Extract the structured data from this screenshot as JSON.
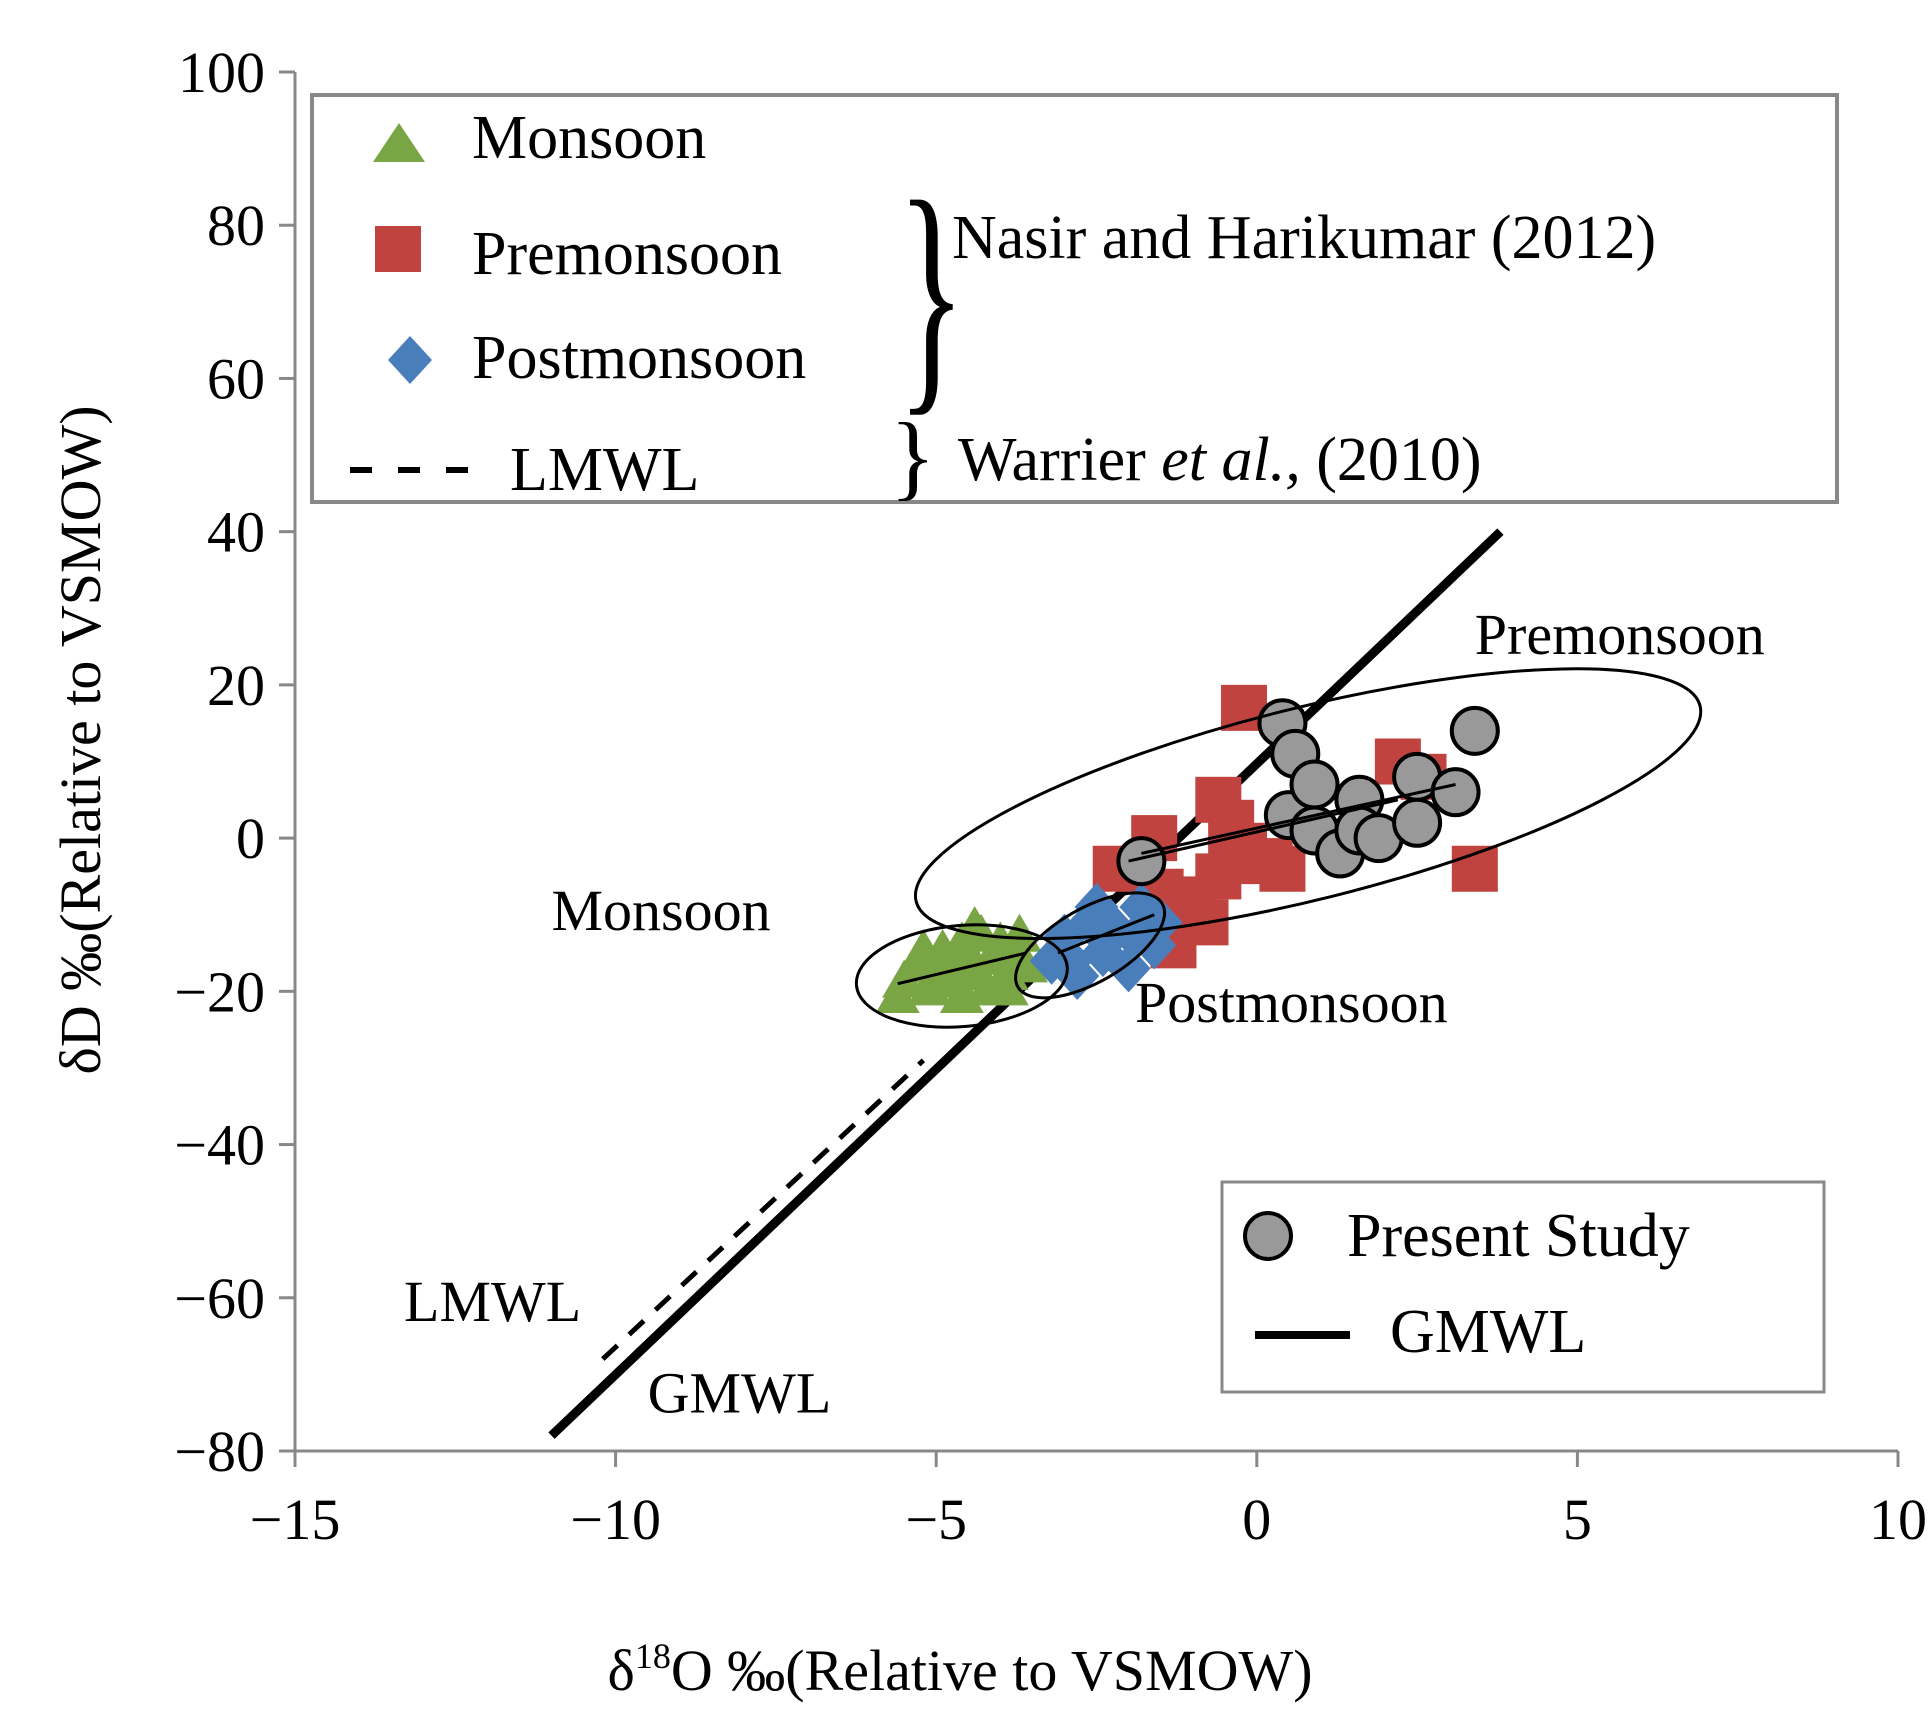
{
  "chart_data": {
    "type": "scatter",
    "xlabel": {
      "delta": "δ",
      "sup": "18",
      "rest": "O ‰(Relative to VSMOW)"
    },
    "ylabel": "δD ‰(Relative to VSMOW)",
    "xlim": [
      -15,
      10
    ],
    "ylim": [
      -80,
      100
    ],
    "xticks": [
      -15,
      -10,
      -5,
      0,
      5,
      10
    ],
    "yticks": [
      -80,
      -60,
      -40,
      -20,
      0,
      20,
      40,
      60,
      80,
      100
    ],
    "xtick_labels": [
      "−15",
      "−10",
      "−5",
      "0",
      "5",
      "10"
    ],
    "ytick_labels": [
      "−80",
      "−60",
      "−40",
      "−20",
      "0",
      "20",
      "40",
      "60",
      "80",
      "100"
    ],
    "grid": false,
    "series": [
      {
        "name": "Monsoon",
        "marker": "triangle",
        "color": "#7aa544",
        "points": [
          [
            -5.6,
            -21
          ],
          [
            -5.5,
            -19
          ],
          [
            -5.3,
            -17
          ],
          [
            -5.1,
            -20
          ],
          [
            -5.0,
            -18
          ],
          [
            -4.9,
            -15
          ],
          [
            -4.8,
            -17
          ],
          [
            -4.7,
            -19
          ],
          [
            -4.6,
            -14
          ],
          [
            -4.5,
            -16
          ],
          [
            -4.4,
            -18
          ],
          [
            -4.3,
            -13
          ],
          [
            -4.2,
            -20
          ],
          [
            -4.1,
            -16
          ],
          [
            -4.0,
            -14
          ],
          [
            -3.9,
            -18
          ],
          [
            -3.8,
            -15
          ],
          [
            -3.7,
            -13
          ],
          [
            -3.6,
            -17
          ],
          [
            -4.6,
            -21
          ],
          [
            -5.2,
            -15
          ],
          [
            -4.4,
            -12
          ],
          [
            -3.9,
            -20
          ]
        ]
      },
      {
        "name": "Premonsoon",
        "marker": "square",
        "color": "#c0433f",
        "points": [
          [
            -0.2,
            17
          ],
          [
            -2.2,
            -4
          ],
          [
            -1.5,
            -7
          ],
          [
            -1.3,
            -14
          ],
          [
            -1.0,
            -8
          ],
          [
            -0.8,
            -11
          ],
          [
            -0.6,
            -5
          ],
          [
            -0.4,
            -3
          ],
          [
            -0.2,
            -1
          ],
          [
            0.2,
            -3
          ],
          [
            -0.6,
            5
          ],
          [
            -1.6,
            0
          ],
          [
            2.2,
            10
          ],
          [
            2.6,
            8
          ],
          [
            3.4,
            -4
          ],
          [
            0.4,
            -4
          ],
          [
            -0.4,
            2
          ]
        ]
      },
      {
        "name": "Postmonsoon",
        "marker": "diamond",
        "color": "#4a7ebb",
        "points": [
          [
            -3.2,
            -16
          ],
          [
            -3.0,
            -13
          ],
          [
            -2.8,
            -18
          ],
          [
            -2.6,
            -11
          ],
          [
            -2.4,
            -15
          ],
          [
            -2.2,
            -12
          ],
          [
            -2.0,
            -17
          ],
          [
            -1.8,
            -9
          ],
          [
            -1.6,
            -14
          ],
          [
            -1.5,
            -11
          ],
          [
            -2.9,
            -16
          ],
          [
            -2.5,
            -9
          ],
          [
            -1.9,
            -13
          ]
        ]
      },
      {
        "name": "Present Study",
        "marker": "circle",
        "color": "#999999",
        "points": [
          [
            -1.8,
            -3
          ],
          [
            0.4,
            15
          ],
          [
            0.6,
            11
          ],
          [
            0.5,
            3
          ],
          [
            0.9,
            7
          ],
          [
            0.9,
            1
          ],
          [
            1.3,
            -2
          ],
          [
            1.6,
            5
          ],
          [
            1.6,
            1
          ],
          [
            1.9,
            0
          ],
          [
            2.5,
            8
          ],
          [
            2.5,
            2
          ],
          [
            3.1,
            6
          ],
          [
            3.4,
            14
          ]
        ]
      }
    ],
    "lines": [
      {
        "name": "GMWL",
        "style": "solid",
        "from": [
          -11,
          -78
        ],
        "to": [
          3.8,
          40
        ]
      },
      {
        "name": "LMWL",
        "style": "dashed",
        "from": [
          -10.2,
          -68
        ],
        "to": [
          -5.2,
          -29
        ]
      }
    ],
    "trend_lines": [
      {
        "series": "Monsoon",
        "from": [
          -5.6,
          -19
        ],
        "to": [
          -3.6,
          -15
        ]
      },
      {
        "series": "Postmonsoon",
        "from": [
          -3.1,
          -15
        ],
        "to": [
          -1.6,
          -10
        ]
      },
      {
        "series": "Present Study",
        "from": [
          -1.8,
          -2
        ],
        "to": [
          3.1,
          7
        ]
      },
      {
        "series": "Premonsoon",
        "from": [
          -2.0,
          -3
        ],
        "to": [
          2.2,
          5
        ]
      }
    ],
    "ellipses": [
      {
        "label": "Premonsoon",
        "cx": 0.8,
        "cy": 4.5,
        "rx": 6.3,
        "ry": 12.5,
        "rot": -14
      },
      {
        "label": "Monsoon",
        "cx": -4.6,
        "cy": -18,
        "rx": 1.65,
        "ry": 6.6,
        "rot": -5
      },
      {
        "label": "Postmonsoon",
        "cx": -2.6,
        "cy": -14,
        "rx": 1.3,
        "ry": 4.8,
        "rot": -30
      }
    ],
    "annotations": [
      {
        "text": "Premonsoon",
        "x": 3.4,
        "y": 24
      },
      {
        "text": "Monsoon",
        "x": -11.0,
        "y": -12
      },
      {
        "text": "Postmonsoon",
        "x": -1.9,
        "y": -24
      },
      {
        "text": "LMWL",
        "x": -13.3,
        "y": -63
      },
      {
        "text": "GMWL",
        "x": -9.5,
        "y": -75
      }
    ],
    "legend_top": {
      "position": "top",
      "entries": [
        "Monsoon",
        "Premonsoon",
        "Postmonsoon",
        "LMWL"
      ],
      "sources": {
        "nasir": "Nasir and Harikumar (2012)",
        "warrier_a": "Warrier ",
        "warrier_em": "et al.,",
        "warrier_b": " (2010)"
      }
    },
    "legend_bottom": {
      "position": "bottom-right",
      "entries": [
        "Present Study",
        "GMWL"
      ]
    }
  }
}
